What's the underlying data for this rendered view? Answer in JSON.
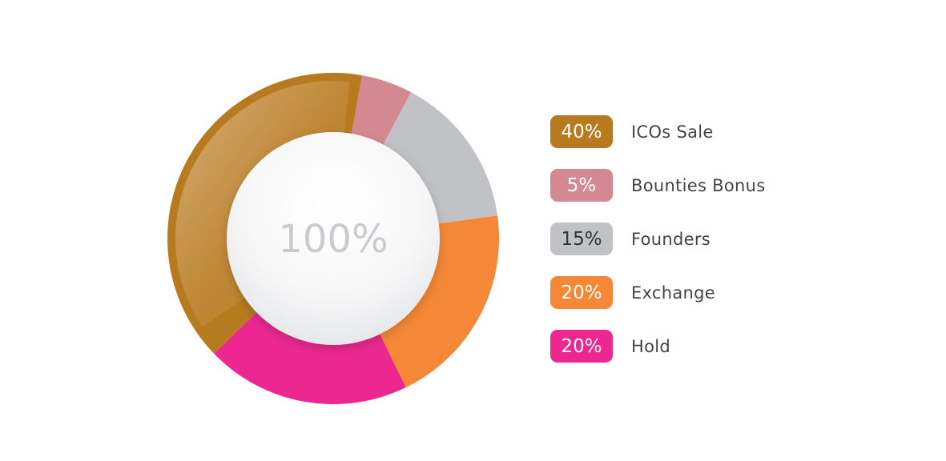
{
  "chart_data": {
    "type": "pie",
    "center_label": "100%",
    "categories": [
      "ICOs Sale",
      "Bounties Bonus",
      "Founders",
      "Exchange",
      "Hold"
    ],
    "values": [
      40,
      5,
      15,
      20,
      20
    ],
    "value_labels": [
      "40%",
      "5%",
      "15%",
      "20%",
      "20%"
    ],
    "colors": [
      "#b87a1f",
      "#d48892",
      "#c1c2c5",
      "#f48836",
      "#ec2890"
    ],
    "badge_text_colors": [
      "#ffffff",
      "#ffffff",
      "#333333",
      "#ffffff",
      "#ffffff"
    ],
    "legend_position": "right",
    "start_angle_deg": -134
  }
}
